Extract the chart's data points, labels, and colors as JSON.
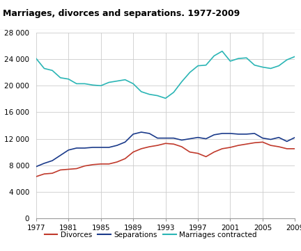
{
  "title": "Marriages, divorces and separations. 1977-2009",
  "years": [
    1977,
    1978,
    1979,
    1980,
    1981,
    1982,
    1983,
    1984,
    1985,
    1986,
    1987,
    1988,
    1989,
    1990,
    1991,
    1992,
    1993,
    1994,
    1995,
    1996,
    1997,
    1998,
    1999,
    2000,
    2001,
    2002,
    2003,
    2004,
    2005,
    2006,
    2007,
    2008,
    2009
  ],
  "divorces": [
    6300,
    6700,
    6800,
    7300,
    7400,
    7500,
    7900,
    8100,
    8200,
    8200,
    8500,
    9000,
    10000,
    10500,
    10800,
    11000,
    11300,
    11200,
    10800,
    10000,
    9800,
    9300,
    10000,
    10500,
    10700,
    11000,
    11200,
    11400,
    11500,
    11000,
    10800,
    10500,
    10500
  ],
  "separations": [
    7800,
    8300,
    8700,
    9500,
    10300,
    10600,
    10600,
    10700,
    10700,
    10700,
    11000,
    11500,
    12700,
    13000,
    12800,
    12100,
    12100,
    12100,
    11800,
    12000,
    12200,
    12000,
    12600,
    12800,
    12800,
    12700,
    12700,
    12800,
    12100,
    11900,
    12200,
    11600,
    12200
  ],
  "marriages": [
    24100,
    22600,
    22300,
    21200,
    21000,
    20300,
    20300,
    20100,
    20000,
    20500,
    20700,
    20900,
    20300,
    19100,
    18700,
    18500,
    18100,
    19000,
    20600,
    22000,
    23000,
    23100,
    24500,
    25200,
    23700,
    24100,
    24200,
    23100,
    22800,
    22600,
    23000,
    23900,
    24400
  ],
  "divorces_color": "#c0392b",
  "separations_color": "#1a3a8a",
  "marriages_color": "#2ab5b5",
  "ylim": [
    0,
    28000
  ],
  "yticks": [
    0,
    4000,
    8000,
    12000,
    16000,
    20000,
    24000,
    28000
  ],
  "xticks": [
    1977,
    1981,
    1985,
    1989,
    1993,
    1997,
    2001,
    2005,
    2009
  ],
  "legend_labels": [
    "Divorces",
    "Separations",
    "Marriages contracted"
  ],
  "background_color": "#ffffff",
  "grid_color": "#cccccc"
}
